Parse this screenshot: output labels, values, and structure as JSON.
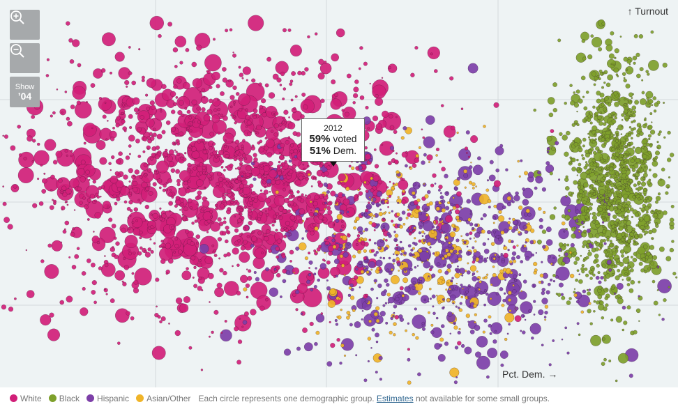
{
  "controls": {
    "zoom_in_icon": "zoom-in-icon",
    "zoom_out_icon": "zoom-out-icon",
    "show_label": "Show",
    "show_year": "’04"
  },
  "axes": {
    "y_label": "↑ Turnout",
    "x_label": "Pct. Dem. →"
  },
  "tooltip": {
    "year": "2012",
    "turnout_value": "59%",
    "turnout_suffix": " voted",
    "dem_value": "51%",
    "dem_suffix": " Dem."
  },
  "legend": {
    "items": [
      {
        "label": "White",
        "color": "#d11f78"
      },
      {
        "label": "Black",
        "color": "#7ea02b"
      },
      {
        "label": "Hispanic",
        "color": "#7d3fa8"
      },
      {
        "label": "Asian/Other",
        "color": "#f0b428"
      }
    ],
    "note_before": "Each circle represents one demographic group.",
    "note_link": "Estimates",
    "note_after": "not available for some small groups."
  },
  "chart_data": {
    "type": "scatter",
    "title": "",
    "xlabel": "Pct. Dem.",
    "ylabel": "Turnout",
    "grid": true,
    "legend_position": "bottom",
    "series": [
      {
        "name": "White",
        "color": "#d11f78",
        "cluster_center": {
          "dem_pct": 32,
          "turnout_pct": 63
        },
        "cluster_spread": {
          "dem_pct": 16,
          "turnout_pct": 14
        },
        "approx_points": 1600
      },
      {
        "name": "Black",
        "color": "#7ea02b",
        "cluster_center": {
          "dem_pct": 92,
          "turnout_pct": 62
        },
        "cluster_spread": {
          "dem_pct": 4,
          "turnout_pct": 14
        },
        "approx_points": 1100
      },
      {
        "name": "Hispanic",
        "color": "#7d3fa8",
        "cluster_center": {
          "dem_pct": 66,
          "turnout_pct": 45
        },
        "cluster_spread": {
          "dem_pct": 12,
          "turnout_pct": 12
        },
        "approx_points": 700
      },
      {
        "name": "Asian/Other",
        "color": "#f0b428",
        "cluster_center": {
          "dem_pct": 64,
          "turnout_pct": 48
        },
        "cluster_spread": {
          "dem_pct": 10,
          "turnout_pct": 10
        },
        "approx_points": 350
      }
    ],
    "highlighted_point": {
      "year": "2012",
      "turnout_pct": 59,
      "dem_pct": 51
    }
  }
}
